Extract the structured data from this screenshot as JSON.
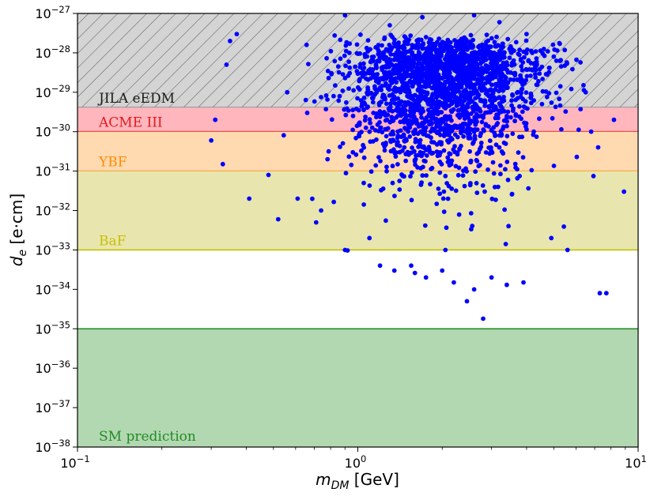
{
  "chart_data": {
    "type": "scatter",
    "x_scale": "log",
    "y_scale": "log",
    "xlim": [
      0.1,
      10
    ],
    "ylim": [
      1e-38,
      1e-27
    ],
    "grid": false,
    "x_ticks": [
      {
        "value": 0.1,
        "base": "10",
        "exp": "−1"
      },
      {
        "value": 1,
        "base": "10",
        "exp": "0"
      },
      {
        "value": 10,
        "base": "10",
        "exp": "1"
      }
    ],
    "y_ticks": [
      {
        "value": 1e-27,
        "base": "10",
        "exp": "−27"
      },
      {
        "value": 1e-28,
        "base": "10",
        "exp": "−28"
      },
      {
        "value": 1e-29,
        "base": "10",
        "exp": "−29"
      },
      {
        "value": 1e-30,
        "base": "10",
        "exp": "−30"
      },
      {
        "value": 1e-31,
        "base": "10",
        "exp": "−31"
      },
      {
        "value": 1e-32,
        "base": "10",
        "exp": "−32"
      },
      {
        "value": 1e-33,
        "base": "10",
        "exp": "−33"
      },
      {
        "value": 1e-34,
        "base": "10",
        "exp": "−34"
      },
      {
        "value": 1e-35,
        "base": "10",
        "exp": "−35"
      },
      {
        "value": 1e-36,
        "base": "10",
        "exp": "−36"
      },
      {
        "value": 1e-37,
        "base": "10",
        "exp": "−37"
      },
      {
        "value": 1e-38,
        "base": "10",
        "exp": "−38"
      }
    ],
    "xlabel": {
      "main": "m",
      "sub": "DM",
      "unit": " [GeV]"
    },
    "ylabel": {
      "main": "d",
      "sub": "e",
      "unit": " [e·cm]"
    },
    "bounds": [
      {
        "name": "JILA eEDM",
        "limit": 4.1e-30,
        "fill": "#d4d4d4",
        "line": "#808080",
        "text_color": "#1a1a1a",
        "hatch": true
      },
      {
        "name": "ACME III",
        "limit": 1e-30,
        "fill": "#ffb6bd",
        "line": "#e41a1c",
        "text_color": "#e41a1c",
        "hatch": false
      },
      {
        "name": "YBF",
        "limit": 1e-31,
        "fill": "#ffd9b0",
        "line": "#ff8c00",
        "text_color": "#ff8c00",
        "hatch": false
      },
      {
        "name": "BaF",
        "limit": 1e-33,
        "fill": "#e8e6ae",
        "line": "#c8c000",
        "text_color": "#c8c000",
        "hatch": false
      },
      {
        "name": "SM prediction",
        "limit": 1e-35,
        "fill": "#b2d8b2",
        "line": "#228b22",
        "text_color": "#228b22",
        "hatch": false
      }
    ],
    "series": [
      {
        "marker_color": "#0000ff",
        "approx_points": 2200,
        "points": [
          [
            0.34,
            5e-29
          ],
          [
            0.35,
            2e-28
          ],
          [
            0.37,
            3e-28
          ],
          [
            0.31,
            2e-30
          ],
          [
            0.3,
            6e-31
          ],
          [
            0.33,
            1.5e-31
          ],
          [
            0.41,
            2e-32
          ],
          [
            0.52,
            6e-33
          ],
          [
            0.48,
            8e-32
          ],
          [
            0.61,
            2e-32
          ],
          [
            0.56,
            1e-29
          ],
          [
            0.66,
            3e-30
          ],
          [
            0.71,
            5e-33
          ],
          [
            0.74,
            1e-32
          ],
          [
            0.78,
            2e-31
          ],
          [
            0.82,
            8e-30
          ],
          [
            0.9,
            1e-33
          ],
          [
            0.96,
            3e-31
          ],
          [
            1.05,
            5e-32
          ],
          [
            1.1,
            2e-33
          ],
          [
            1.2,
            4e-34
          ],
          [
            1.35,
            3e-34
          ],
          [
            1.55,
            4e-34
          ],
          [
            1.75,
            2e-34
          ],
          [
            2.0,
            3e-34
          ],
          [
            2.2,
            1.5e-34
          ],
          [
            2.45,
            5e-35
          ],
          [
            2.6,
            1e-34
          ],
          [
            2.8,
            1.8e-35
          ],
          [
            3.0,
            2e-34
          ],
          [
            3.4,
            1.3e-34
          ],
          [
            3.9,
            1.5e-34
          ],
          [
            4.9,
            2e-33
          ],
          [
            5.6,
            1e-33
          ],
          [
            7.3,
            8e-35
          ],
          [
            7.7,
            8e-35
          ],
          [
            8.9,
            3e-32
          ],
          [
            8.2,
            2e-30
          ],
          [
            6.8,
            1e-30
          ],
          [
            7.2,
            4e-31
          ],
          [
            0.74,
            1e-27
          ],
          [
            0.9,
            9e-28
          ],
          [
            1.3,
            5e-28
          ],
          [
            1.7,
            8e-28
          ],
          [
            2.1,
            1e-27
          ],
          [
            2.6,
            9e-28
          ],
          [
            3.2,
            6e-28
          ],
          [
            4.0,
            3e-28
          ],
          [
            5.0,
            8e-29
          ],
          [
            6.5,
            1e-29
          ]
        ]
      }
    ]
  }
}
